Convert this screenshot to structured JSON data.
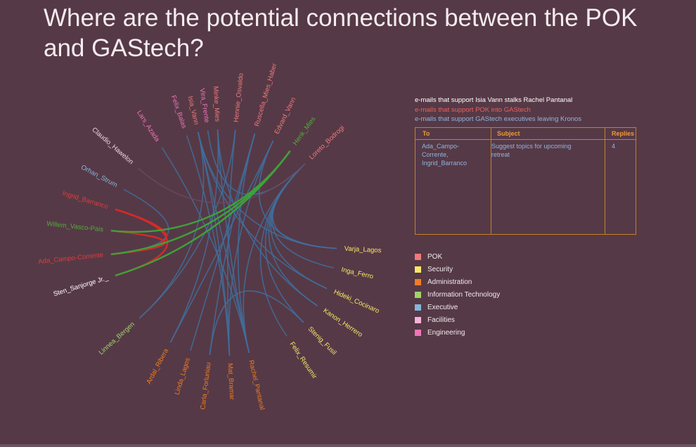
{
  "title": "Where are the potential connections between the POK and GAStech?",
  "key_lines": [
    "e-mails that support Isia Vann stalks Rachel Pantanal",
    "e-mails that support POK into GAStech",
    "e-mails that support GAStech executives leaving Kronos"
  ],
  "email_table": {
    "headers": [
      "To",
      "Subject",
      "Replies"
    ],
    "row": {
      "to": [
        "Ada_Campo-",
        "Corrente,",
        "Ingrid_Barranco"
      ],
      "subject": [
        "Suggest topics  for upcoming",
        "retreat"
      ],
      "replies": "4"
    }
  },
  "legend": [
    {
      "label": "POK",
      "color": "#f07a7a"
    },
    {
      "label": "Security",
      "color": "#f5e86a"
    },
    {
      "label": "Administration",
      "color": "#ef7d22"
    },
    {
      "label": "Information Technology",
      "color": "#9dd46b"
    },
    {
      "label": "Executive",
      "color": "#86b4dc"
    },
    {
      "label": "Facilities",
      "color": "#f2b4d6"
    },
    {
      "label": "Engineering",
      "color": "#ec76b7"
    }
  ],
  "diagram": {
    "nodes": [
      {
        "name": "Isia_Vann",
        "group": "POK",
        "color": "#f07a7a"
      },
      {
        "name": "Minke_Mies",
        "group": "POK",
        "color": "#f07a7a"
      },
      {
        "name": "Hennie_Osvaldo",
        "group": "POK",
        "color": "#f07a7a"
      },
      {
        "name": "Ruscella_Mies_Haber",
        "group": "POK",
        "color": "#f07a7a"
      },
      {
        "name": "Edvard_Vann",
        "group": "POK",
        "color": "#f07a7a"
      },
      {
        "name": "Henk_Mies",
        "group": "Information Technology",
        "color": "#4fae3a"
      },
      {
        "name": "Loreto_Bodrogi",
        "group": "POK",
        "color": "#f07a7a"
      },
      {
        "name": "Varja_Lagos",
        "group": "Security",
        "color": "#f5e86a"
      },
      {
        "name": "Inga_Ferro",
        "group": "Security",
        "color": "#f5e86a"
      },
      {
        "name": "Hideki_Cocinaro",
        "group": "Security",
        "color": "#f5e86a"
      },
      {
        "name": "Kanon_Herrero",
        "group": "Security",
        "color": "#f5e86a"
      },
      {
        "name": "Stenig_Fusil",
        "group": "Security",
        "color": "#f5e86a"
      },
      {
        "name": "Felix_Resumir",
        "group": "Security",
        "color": "#f5e86a"
      },
      {
        "name": "Rachel_Pantanal",
        "group": "Administration",
        "color": "#ef7d22"
      },
      {
        "name": "Mat_Bramar",
        "group": "Administration",
        "color": "#ef7d22"
      },
      {
        "name": "Carla_Forluniau",
        "group": "Administration",
        "color": "#ef7d22"
      },
      {
        "name": "Linda_Lagos",
        "group": "Administration",
        "color": "#ef7d22"
      },
      {
        "name": "Ardal_Ribera",
        "group": "Administration",
        "color": "#ef7d22"
      },
      {
        "name": "Linnea_Bergen",
        "group": "Information Technology",
        "color": "#9dd46b"
      },
      {
        "name": "Sten_Sanjorge Jr._",
        "group": "Executive",
        "color": "#ffffff"
      },
      {
        "name": "Ada_Campo-Corrente",
        "group": "POK",
        "color": "#e03c3c"
      },
      {
        "name": "Willem_Vasco-Pais",
        "group": "Information Technology",
        "color": "#4fae3a"
      },
      {
        "name": "Ingrid_Barranco",
        "group": "POK",
        "color": "#e03c3c"
      },
      {
        "name": "Orhan_Strum",
        "group": "Executive",
        "color": "#86b4dc"
      },
      {
        "name": "Claudio_Hawelon",
        "group": "Facilities",
        "color": "#f2d3e3"
      },
      {
        "name": "Lars_Azada",
        "group": "Engineering",
        "color": "#ec76b7"
      },
      {
        "name": "Felix_Balas",
        "group": "Engineering",
        "color": "#ec76b7"
      },
      {
        "name": "Vira_Frente",
        "group": "Engineering",
        "color": "#ec76b7"
      }
    ],
    "edges": [
      {
        "source": 0,
        "target": 13,
        "color": "#3f6f9e"
      },
      {
        "source": 0,
        "target": 18,
        "color": "#3f6f9e"
      },
      {
        "source": 0,
        "target": 14,
        "color": "#3f6f9e"
      },
      {
        "source": 1,
        "target": 13,
        "color": "#3f6f9e"
      },
      {
        "source": 1,
        "target": 17,
        "color": "#3f6f9e"
      },
      {
        "source": 2,
        "target": 14,
        "color": "#3f6f9e"
      },
      {
        "source": 2,
        "target": 18,
        "color": "#3f6f9e"
      },
      {
        "source": 3,
        "target": 13,
        "color": "#3f6f9e"
      },
      {
        "source": 3,
        "target": 15,
        "color": "#3f6f9e"
      },
      {
        "source": 4,
        "target": 14,
        "color": "#3f6f9e"
      },
      {
        "source": 4,
        "target": 7,
        "color": "#3f6f9e"
      },
      {
        "source": 6,
        "target": 7,
        "color": "#3f6f9e"
      },
      {
        "source": 6,
        "target": 8,
        "color": "#3f6f9e"
      },
      {
        "source": 6,
        "target": 9,
        "color": "#3f6f9e"
      },
      {
        "source": 6,
        "target": 10,
        "color": "#3f6f9e"
      },
      {
        "source": 6,
        "target": 11,
        "color": "#3f6f9e"
      },
      {
        "source": 6,
        "target": 12,
        "color": "#3f6f9e"
      },
      {
        "source": 6,
        "target": 13,
        "color": "#3f6f9e"
      },
      {
        "source": 0,
        "target": 7,
        "color": "#3f6f9e"
      },
      {
        "source": 0,
        "target": 9,
        "color": "#3f6f9e"
      },
      {
        "source": 1,
        "target": 10,
        "color": "#3f6f9e"
      },
      {
        "source": 26,
        "target": 14,
        "color": "#3f6f9e"
      },
      {
        "source": 25,
        "target": 13,
        "color": "#3f6f9e"
      },
      {
        "source": 27,
        "target": 6,
        "color": "#3f6f9e"
      },
      {
        "source": 23,
        "target": 20,
        "color": "#3f6f9e"
      },
      {
        "source": 15,
        "target": 11,
        "color": "#3f6f9e"
      },
      {
        "source": 17,
        "target": 4,
        "color": "#3f6f9e"
      },
      {
        "source": 16,
        "target": 3,
        "color": "#3f6f9e"
      },
      {
        "source": 24,
        "target": 6,
        "color": "#6a4a5e"
      },
      {
        "source": 22,
        "target": 20,
        "color": "#d42a2a"
      },
      {
        "source": 22,
        "target": 19,
        "color": "#d42a2a"
      },
      {
        "source": 20,
        "target": 21,
        "color": "#d42a2a"
      },
      {
        "source": 5,
        "target": 21,
        "color": "#3da23a"
      },
      {
        "source": 5,
        "target": 19,
        "color": "#3da23a"
      },
      {
        "source": 5,
        "target": 20,
        "color": "#3da23a"
      }
    ]
  }
}
